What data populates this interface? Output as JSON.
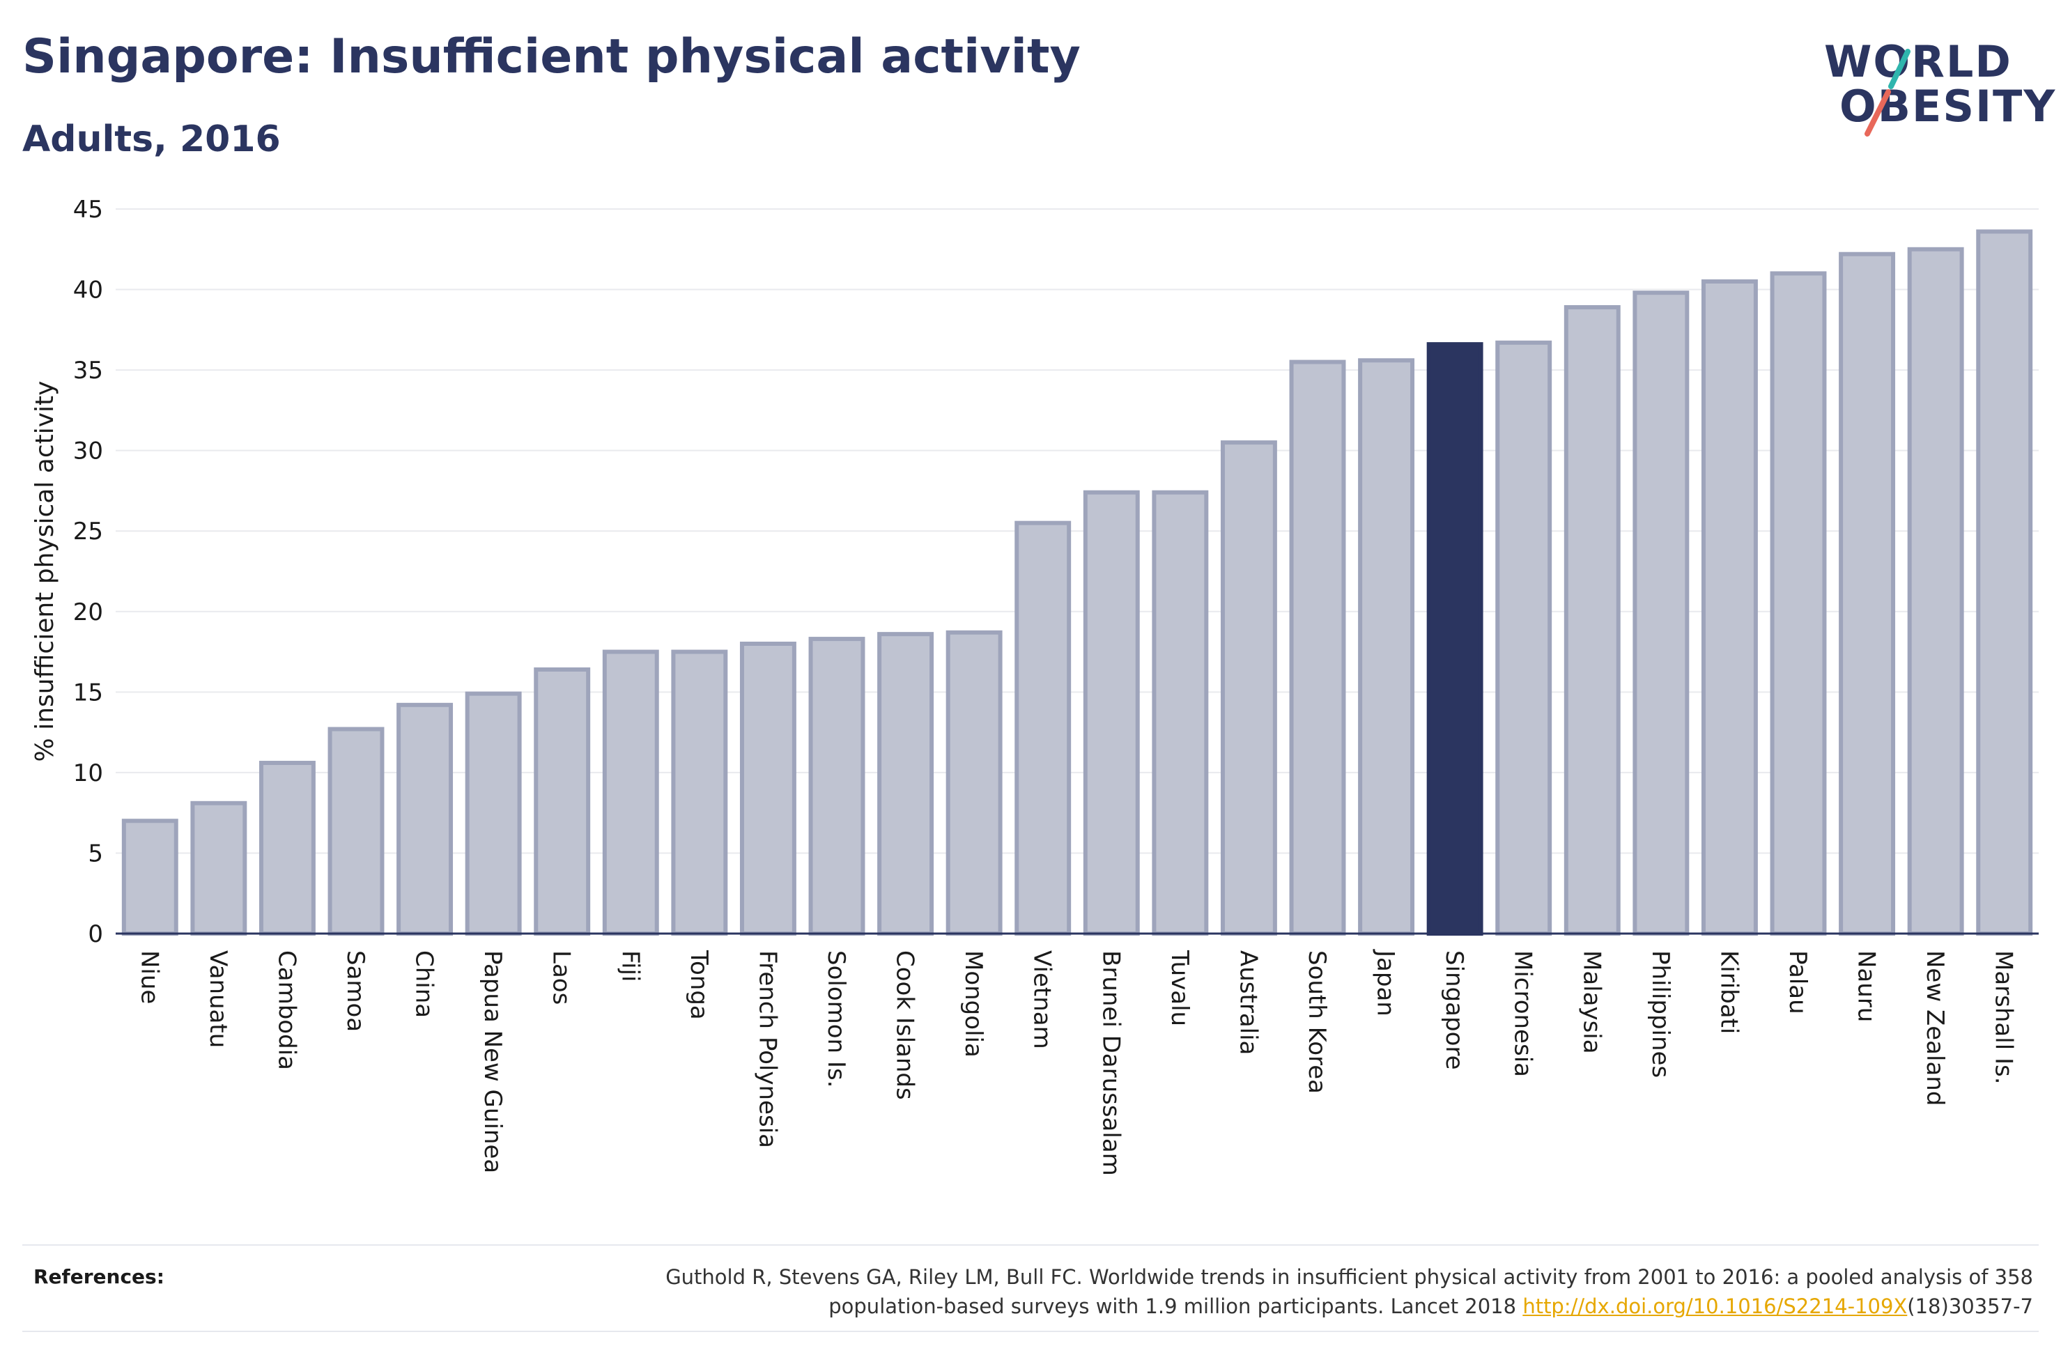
{
  "header": {
    "title": "Singapore: Insufficient physical activity",
    "subtitle": "Adults, 2016"
  },
  "logo": {
    "line1": "WORLD",
    "line2": "OBESITY"
  },
  "colors": {
    "brand_navy": "#2b3560",
    "bar_fill": "#bfc3d1",
    "bar_stroke": "#9ea4bb",
    "highlight_bar": "#2b3560",
    "logo_teal": "#2fb5ad",
    "logo_coral": "#e8685a",
    "link": "#e6a700"
  },
  "chart_data": {
    "type": "bar",
    "ylabel": "% insufficient physical activity",
    "xlabel": "",
    "ylim": [
      0,
      45
    ],
    "yticks": [
      0,
      5,
      10,
      15,
      20,
      25,
      30,
      35,
      40,
      45
    ],
    "grid": true,
    "highlight": "Singapore",
    "categories": [
      "Niue",
      "Vanuatu",
      "Cambodia",
      "Samoa",
      "China",
      "Papua New Guinea",
      "Laos",
      "Fiji",
      "Tonga",
      "French Polynesia",
      "Solomon Is.",
      "Cook Islands",
      "Mongolia",
      "Vietnam",
      "Brunei Darussalam",
      "Tuvalu",
      "Australia",
      "South Korea",
      "Japan",
      "Singapore",
      "Micronesia",
      "Malaysia",
      "Philippines",
      "Kiribati",
      "Palau",
      "Nauru",
      "New Zealand",
      "Marshall Is."
    ],
    "values": [
      7.0,
      8.1,
      10.6,
      12.7,
      14.2,
      14.9,
      16.4,
      17.5,
      17.5,
      18.0,
      18.3,
      18.6,
      18.7,
      25.5,
      27.4,
      27.4,
      30.5,
      35.5,
      35.6,
      36.6,
      36.7,
      38.9,
      39.8,
      40.5,
      41.0,
      42.2,
      42.5,
      43.6
    ]
  },
  "references": {
    "label": "References:",
    "text_line1": "Guthold R, Stevens GA, Riley LM, Bull FC. Worldwide trends in insufficient physical activity from 2001 to 2016: a pooled analysis of 358",
    "text_line2_before": "population-based surveys with 1.9 million participants. Lancet 2018 ",
    "link_text": "http://dx.doi.org/10.1016/S2214-109X",
    "text_line2_after": "(18)30357-7"
  }
}
